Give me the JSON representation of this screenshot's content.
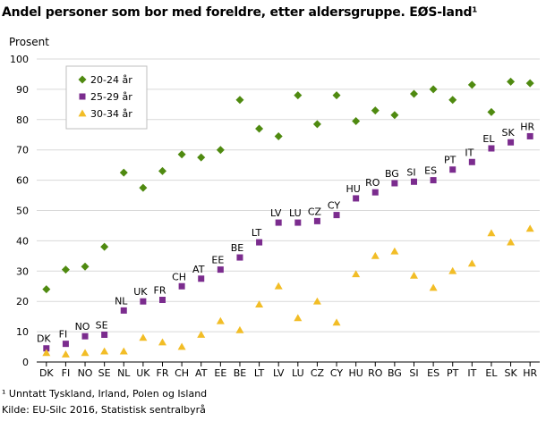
{
  "chart_data": {
    "type": "scatter",
    "title": "Andel personer som bor med foreldre, etter aldersgruppe. EØS-land¹",
    "ylabel": "Prosent",
    "xlabel": "",
    "ylim": [
      0,
      100
    ],
    "yticks": [
      0,
      10,
      20,
      30,
      40,
      50,
      60,
      70,
      80,
      90,
      100
    ],
    "grid": true,
    "legend_position": "top-left",
    "categories": [
      "DK",
      "FI",
      "NO",
      "SE",
      "NL",
      "UK",
      "FR",
      "CH",
      "AT",
      "EE",
      "BE",
      "LT",
      "LV",
      "LU",
      "CZ",
      "CY",
      "HU",
      "RO",
      "BG",
      "SI",
      "ES",
      "PT",
      "IT",
      "EL",
      "SK",
      "HR"
    ],
    "series": [
      {
        "name": "20-24 år",
        "marker": "diamond",
        "color": "#4f8a10",
        "values": [
          24,
          30.5,
          31.5,
          38,
          62.5,
          57.5,
          63,
          68.5,
          67.5,
          70,
          86.5,
          77,
          74.5,
          88,
          78.5,
          88,
          79.5,
          83,
          81.5,
          88.5,
          90,
          86.5,
          91.5,
          82.5,
          92.5,
          92
        ]
      },
      {
        "name": "25-29 år",
        "marker": "square",
        "color": "#7b2c8e",
        "values": [
          4.5,
          6,
          8.5,
          9,
          17,
          20,
          20.5,
          25,
          27.5,
          30.5,
          34.5,
          39.5,
          46,
          46,
          46.5,
          48.5,
          54,
          56,
          59,
          59.5,
          60,
          63.5,
          66,
          70.5,
          72.5,
          74.5
        ]
      },
      {
        "name": "30-34 år",
        "marker": "triangle",
        "color": "#f2bd26",
        "values": [
          3,
          2.5,
          3,
          3.5,
          3.5,
          8,
          6.5,
          5,
          9,
          13.5,
          10.5,
          19,
          25,
          14.5,
          20,
          13,
          29,
          35,
          36.5,
          28.5,
          24.5,
          30,
          32.5,
          42.5,
          39.5,
          44
        ]
      }
    ],
    "data_labels": {
      "series": "25-29 år",
      "labels": [
        "DK",
        "FI",
        "NO",
        "SE",
        "NL",
        "UK",
        "FR",
        "CH",
        "AT",
        "EE",
        "BE",
        "LT",
        "LV",
        "LU",
        "CZ",
        "CY",
        "HU",
        "RO",
        "BG",
        "SI",
        "ES",
        "PT",
        "IT",
        "EL",
        "SK",
        "HR"
      ]
    }
  },
  "footnotes": [
    "¹ Unntatt Tyskland, Irland, Polen og Island",
    "Kilde: EU-Silc 2016, Statistisk sentralbyrå"
  ]
}
